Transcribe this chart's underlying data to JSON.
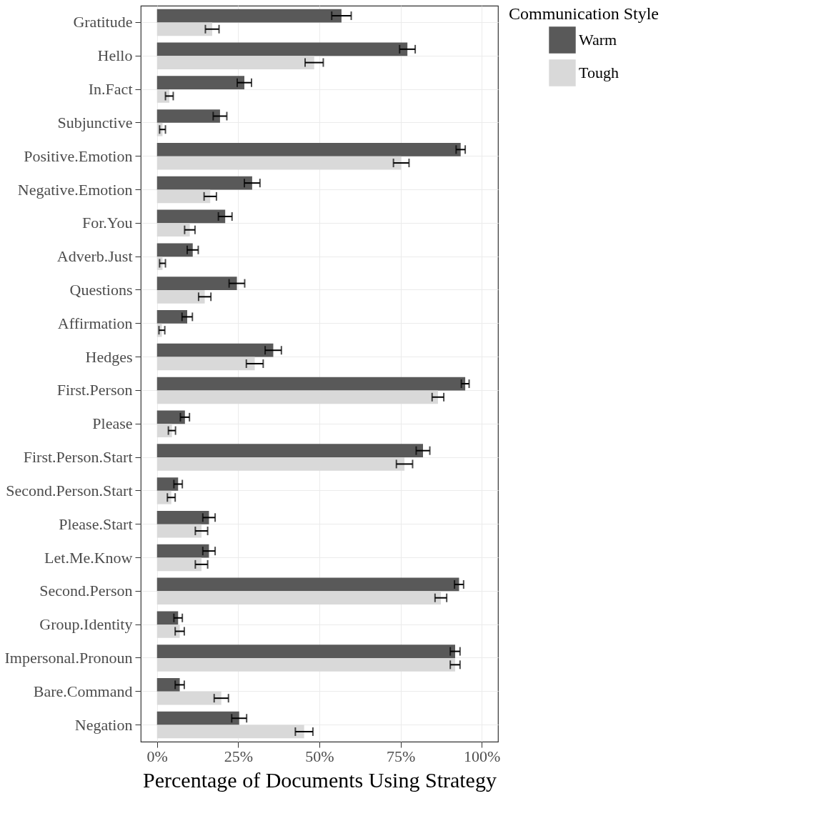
{
  "chart_data": {
    "type": "bar",
    "orientation": "horizontal",
    "xlabel": "Percentage of Documents Using Strategy",
    "legend_title": "Communication Style",
    "legend": "right",
    "grid": true,
    "categories": [
      "Gratitude",
      "Hello",
      "In.Fact",
      "Subjunctive",
      "Positive.Emotion",
      "Negative.Emotion",
      "For.You",
      "Adverb.Just",
      "Questions",
      "Affirmation",
      "Hedges",
      "First.Person",
      "Please",
      "First.Person.Start",
      "Second.Person.Start",
      "Please.Start",
      "Let.Me.Know",
      "Second.Person",
      "Group.Identity",
      "Impersonal.Pronoun",
      "Bare.Command",
      "Negation"
    ],
    "xlim": [
      -5,
      105
    ],
    "xticks": [
      {
        "value": 0,
        "label": "0%"
      },
      {
        "value": 25,
        "label": "25%"
      },
      {
        "value": 50,
        "label": "50%"
      },
      {
        "value": 75,
        "label": "75%"
      },
      {
        "value": 100,
        "label": "100%"
      }
    ],
    "series": [
      {
        "name": "Warm",
        "color": "#595959",
        "values": [
          56.8,
          77.1,
          26.9,
          19.4,
          93.5,
          29.3,
          21,
          11,
          24.6,
          9.3,
          35.8,
          94.9,
          8.6,
          81.9,
          6.5,
          16,
          16,
          93,
          6.5,
          91.8,
          7,
          25.3
        ],
        "errors": [
          3,
          2.4,
          2.2,
          2.1,
          1.4,
          2.4,
          2.1,
          1.7,
          2.4,
          1.6,
          2.5,
          1.2,
          1.4,
          2.1,
          1.3,
          1.9,
          1.9,
          1.4,
          1.3,
          1.5,
          1.4,
          2.3
        ]
      },
      {
        "name": "Tough",
        "color": "#d9d9d9",
        "values": [
          17,
          48.4,
          3.8,
          1.7,
          75.2,
          16.4,
          10.1,
          1.7,
          14.7,
          1.5,
          30.1,
          86.5,
          4.6,
          76.2,
          4.4,
          13.7,
          13.7,
          87.4,
          7,
          91.8,
          19.8,
          45.3
        ],
        "errors": [
          2.1,
          2.8,
          1.2,
          0.9,
          2.4,
          1.9,
          1.6,
          0.9,
          1.9,
          0.9,
          2.6,
          1.8,
          1.1,
          2.5,
          1.2,
          1.9,
          1.9,
          1.8,
          1.4,
          1.5,
          2.2,
          2.7
        ]
      }
    ]
  }
}
